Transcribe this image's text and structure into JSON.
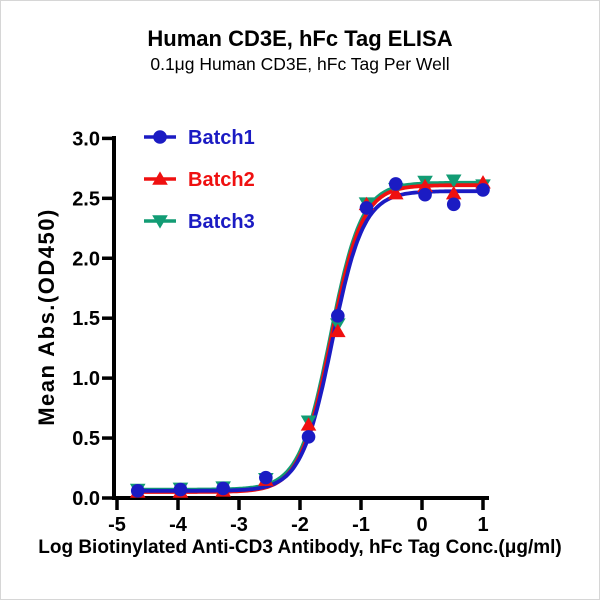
{
  "chart_data": {
    "type": "line",
    "title": "Human CD3E, hFc Tag ELISA",
    "subtitle": "0.1μg Human CD3E, hFc Tag Per Well",
    "xlabel": "Log Biotinylated Anti-CD3 Antibody, hFc Tag Conc.(μg/ml)",
    "ylabel": "Mean Abs.(OD450)",
    "xlim": [
      -5,
      1.1
    ],
    "ylim": [
      0,
      3.0
    ],
    "grid": false,
    "legend_position": "top-left-inside",
    "axis_color": "#000000",
    "x_ticks": {
      "values": [
        -5,
        -4,
        -3,
        -2,
        -1,
        0,
        1
      ],
      "labels": [
        "-5",
        "-4",
        "-3",
        "-2",
        "-1",
        "0",
        "1"
      ]
    },
    "y_ticks": {
      "values": [
        0,
        0.5,
        1,
        1.5,
        2,
        2.5,
        3
      ],
      "labels": [
        "0.0",
        "0.5",
        "1.0",
        "1.5",
        "2.0",
        "2.5",
        "3.0"
      ]
    },
    "x": [
      -4.66,
      -3.96,
      -3.26,
      -2.56,
      -1.86,
      -1.38,
      -0.91,
      -0.43,
      0.05,
      0.52,
      1.0
    ],
    "curve_x_range": [
      -4.66,
      1.02
    ],
    "series": [
      {
        "name": "Batch1",
        "color": "#1b1bc3",
        "label_color": "#1b1bc3",
        "marker": "circle",
        "values": [
          0.06,
          0.07,
          0.08,
          0.17,
          0.51,
          1.52,
          2.42,
          2.62,
          2.53,
          2.45,
          2.57
        ],
        "fit": {
          "bottom": 0.06,
          "top": 2.56,
          "logec50": -1.47,
          "hill": 1.7
        }
      },
      {
        "name": "Batch2",
        "color": "#ef1010",
        "label_color": "#ef1010",
        "marker": "triangle-up",
        "values": [
          0.05,
          0.05,
          0.06,
          0.15,
          0.61,
          1.39,
          2.45,
          2.54,
          2.6,
          2.54,
          2.63
        ],
        "fit": {
          "bottom": 0.05,
          "top": 2.61,
          "logec50": -1.49,
          "hill": 1.7
        }
      },
      {
        "name": "Batch3",
        "color": "#129c74",
        "label_color": "#1b1bc3",
        "marker": "triangle-down",
        "values": [
          0.07,
          0.08,
          0.09,
          0.16,
          0.64,
          1.45,
          2.46,
          2.58,
          2.64,
          2.65,
          2.61
        ],
        "fit": {
          "bottom": 0.07,
          "top": 2.63,
          "logec50": -1.5,
          "hill": 1.7
        }
      }
    ]
  }
}
